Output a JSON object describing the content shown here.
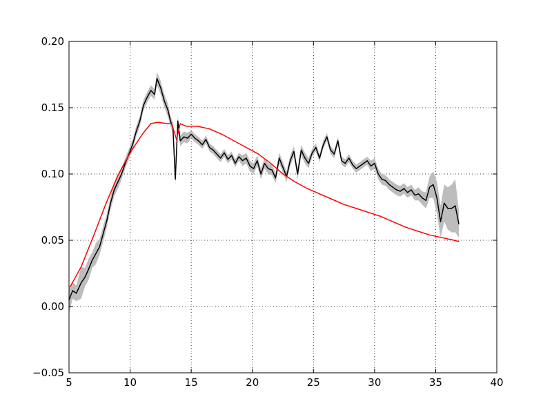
{
  "chart_data": {
    "type": "line",
    "title": "",
    "xlabel": "",
    "ylabel": "",
    "xlim": [
      5,
      40
    ],
    "ylim": [
      -0.05,
      0.2
    ],
    "x_ticks": [
      5,
      10,
      15,
      20,
      25,
      30,
      35,
      40
    ],
    "x_tick_labels": [
      "5",
      "10",
      "15",
      "20",
      "25",
      "30",
      "35",
      "40"
    ],
    "y_ticks": [
      -0.05,
      0.0,
      0.05,
      0.1,
      0.15,
      0.2
    ],
    "y_tick_labels": [
      "−0.05",
      "0.00",
      "0.05",
      "0.10",
      "0.15",
      "0.20"
    ],
    "grid": true,
    "legend": "none",
    "series": [
      {
        "color": "#000000",
        "band_color": "#bdbdbd",
        "x": [
          5.0,
          5.3,
          5.6,
          6.0,
          6.3,
          6.6,
          6.9,
          7.2,
          7.5,
          7.8,
          8.1,
          8.4,
          8.7,
          9.0,
          9.3,
          9.6,
          9.9,
          10.2,
          10.5,
          10.8,
          11.1,
          11.4,
          11.7,
          12.0,
          12.2,
          12.5,
          12.8,
          13.1,
          13.3,
          13.5,
          13.7,
          13.9,
          14.1,
          14.4,
          14.7,
          15.0,
          15.3,
          15.6,
          15.9,
          16.2,
          16.5,
          16.8,
          17.1,
          17.4,
          17.7,
          18.0,
          18.3,
          18.6,
          18.9,
          19.2,
          19.5,
          19.8,
          20.1,
          20.4,
          20.7,
          21.0,
          21.3,
          21.6,
          21.9,
          22.2,
          22.5,
          22.8,
          23.1,
          23.4,
          23.7,
          24.0,
          24.3,
          24.6,
          24.9,
          25.2,
          25.5,
          25.8,
          26.1,
          26.4,
          26.7,
          27.0,
          27.3,
          27.6,
          27.9,
          28.2,
          28.5,
          28.8,
          29.1,
          29.4,
          29.7,
          30.0,
          30.3,
          30.6,
          30.9,
          31.2,
          31.5,
          31.8,
          32.1,
          32.4,
          32.7,
          33.0,
          33.3,
          33.6,
          33.9,
          34.2,
          34.5,
          34.8,
          35.1,
          35.4,
          35.7,
          36.0,
          36.3,
          36.6,
          36.9
        ],
        "y": [
          0.005,
          0.012,
          0.01,
          0.018,
          0.022,
          0.028,
          0.035,
          0.04,
          0.045,
          0.055,
          0.065,
          0.078,
          0.088,
          0.094,
          0.1,
          0.108,
          0.115,
          0.122,
          0.132,
          0.14,
          0.152,
          0.158,
          0.163,
          0.16,
          0.172,
          0.165,
          0.155,
          0.148,
          0.14,
          0.135,
          0.096,
          0.14,
          0.125,
          0.128,
          0.127,
          0.13,
          0.127,
          0.125,
          0.122,
          0.126,
          0.12,
          0.118,
          0.115,
          0.112,
          0.116,
          0.111,
          0.114,
          0.108,
          0.113,
          0.11,
          0.112,
          0.106,
          0.104,
          0.11,
          0.1,
          0.108,
          0.104,
          0.103,
          0.097,
          0.112,
          0.105,
          0.098,
          0.11,
          0.117,
          0.1,
          0.118,
          0.112,
          0.108,
          0.116,
          0.12,
          0.112,
          0.122,
          0.128,
          0.118,
          0.115,
          0.125,
          0.11,
          0.108,
          0.112,
          0.107,
          0.104,
          0.106,
          0.108,
          0.11,
          0.106,
          0.108,
          0.1,
          0.096,
          0.095,
          0.092,
          0.09,
          0.088,
          0.087,
          0.089,
          0.086,
          0.088,
          0.084,
          0.085,
          0.082,
          0.08,
          0.09,
          0.092,
          0.082,
          0.064,
          0.078,
          0.074,
          0.074,
          0.076,
          0.062
        ],
        "err": [
          0.01,
          0.006,
          0.006,
          0.012,
          0.007,
          0.008,
          0.006,
          0.008,
          0.006,
          0.006,
          0.005,
          0.005,
          0.005,
          0.005,
          0.004,
          0.004,
          0.004,
          0.004,
          0.004,
          0.004,
          0.004,
          0.004,
          0.004,
          0.004,
          0.005,
          0.005,
          0.005,
          0.005,
          0.004,
          0.004,
          0.004,
          0.004,
          0.004,
          0.004,
          0.004,
          0.003,
          0.003,
          0.003,
          0.003,
          0.003,
          0.003,
          0.003,
          0.003,
          0.003,
          0.003,
          0.003,
          0.003,
          0.003,
          0.003,
          0.004,
          0.004,
          0.004,
          0.004,
          0.004,
          0.004,
          0.004,
          0.004,
          0.004,
          0.004,
          0.004,
          0.004,
          0.004,
          0.004,
          0.004,
          0.004,
          0.004,
          0.004,
          0.004,
          0.003,
          0.003,
          0.003,
          0.003,
          0.003,
          0.003,
          0.003,
          0.003,
          0.003,
          0.003,
          0.003,
          0.003,
          0.003,
          0.003,
          0.003,
          0.003,
          0.004,
          0.004,
          0.004,
          0.004,
          0.004,
          0.004,
          0.004,
          0.004,
          0.004,
          0.004,
          0.004,
          0.004,
          0.004,
          0.005,
          0.005,
          0.006,
          0.008,
          0.01,
          0.012,
          0.012,
          0.014,
          0.016,
          0.018,
          0.02,
          0.01
        ]
      },
      {
        "color": "#ff0000",
        "x": [
          5.1,
          6.0,
          7.0,
          8.0,
          9.0,
          10.0,
          11.0,
          11.7,
          12.3,
          13.0,
          13.4,
          13.6,
          13.8,
          14.1,
          14.6,
          15.5,
          16.5,
          17.5,
          18.5,
          19.5,
          20.5,
          21.5,
          22.5,
          23.5,
          24.5,
          25.5,
          26.5,
          27.5,
          28.5,
          29.5,
          30.5,
          31.5,
          32.5,
          33.5,
          34.5,
          35.5,
          36.5,
          36.9
        ],
        "y": [
          0.015,
          0.03,
          0.053,
          0.077,
          0.099,
          0.116,
          0.13,
          0.138,
          0.139,
          0.138,
          0.138,
          0.132,
          0.126,
          0.138,
          0.136,
          0.136,
          0.134,
          0.13,
          0.125,
          0.12,
          0.115,
          0.108,
          0.1,
          0.094,
          0.089,
          0.085,
          0.081,
          0.077,
          0.074,
          0.071,
          0.068,
          0.064,
          0.06,
          0.057,
          0.054,
          0.052,
          0.05,
          0.049
        ]
      }
    ]
  }
}
